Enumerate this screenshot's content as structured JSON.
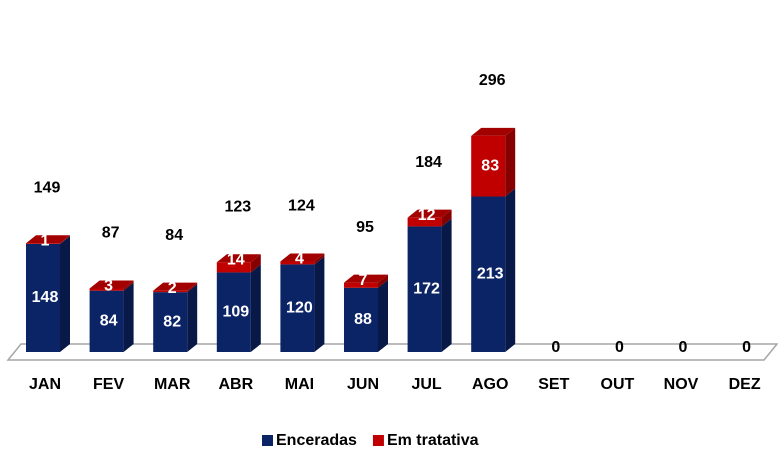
{
  "chart_data": {
    "type": "bar3d_stacked",
    "categories": [
      "JAN",
      "FEV",
      "MAR",
      "ABR",
      "MAI",
      "JUN",
      "JUL",
      "AGO",
      "SET",
      "OUT",
      "NOV",
      "DEZ"
    ],
    "series": [
      {
        "name": "Enceradas",
        "color": "#0b2466",
        "values": [
          148,
          84,
          82,
          109,
          120,
          88,
          172,
          213,
          0,
          0,
          0,
          0
        ]
      },
      {
        "name": "Em tratativa",
        "color": "#c00000",
        "values": [
          1,
          3,
          2,
          14,
          4,
          7,
          12,
          83,
          null,
          null,
          null,
          null
        ]
      }
    ],
    "totals": [
      149,
      87,
      84,
      123,
      124,
      95,
      184,
      296,
      null,
      null,
      null,
      null
    ],
    "legend": "bottom"
  }
}
